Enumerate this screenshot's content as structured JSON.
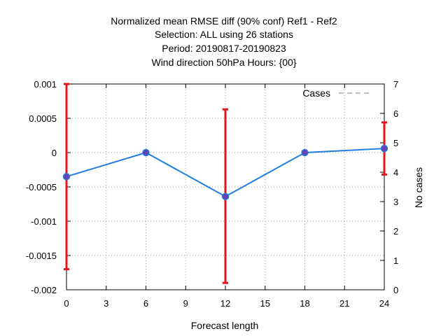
{
  "chart_data": {
    "type": "line",
    "title_lines": [
      "Normalized mean RMSE diff (90% conf) Ref1 - Ref2",
      "Selection: ALL using    26 stations",
      "Period: 20190817-20190823",
      "Wind direction 50hPa   Hours: {00}"
    ],
    "xlabel": "Forecast length",
    "ylabel": "",
    "y2label": "No cases",
    "xlim": [
      0,
      24
    ],
    "ylim": [
      -0.002,
      0.001
    ],
    "y2lim": [
      0,
      7
    ],
    "x_ticks": [
      "0",
      "3",
      "6",
      "9",
      "12",
      "15",
      "18",
      "21",
      "24"
    ],
    "y_ticks": [
      "0.001",
      "0.0005",
      "0",
      "-0.0005",
      "-0.001",
      "-0.0015",
      "-0.002"
    ],
    "y2_ticks": [
      "7",
      "6",
      "5",
      "4",
      "3",
      "2",
      "1",
      "0"
    ],
    "grid": true,
    "legend": {
      "position": "top-right"
    },
    "series": [
      {
        "x": [
          0,
          6,
          12,
          18,
          24
        ],
        "values": [
          -0.00035,
          0.0,
          -0.00064,
          0.0,
          6e-05
        ],
        "color": "#1f7ee0"
      }
    ],
    "error_bars": {
      "x": [
        0,
        12,
        24
      ],
      "low": [
        -0.0017,
        -0.0019,
        -0.00032
      ],
      "high": [
        0.001,
        0.00063,
        0.00044
      ],
      "color": "#e8141a"
    },
    "cases": {
      "name": "Cases",
      "x": [
        0,
        6,
        12,
        18,
        24
      ],
      "values": [
        7,
        7,
        7,
        7,
        7
      ],
      "color": "#808080"
    }
  }
}
